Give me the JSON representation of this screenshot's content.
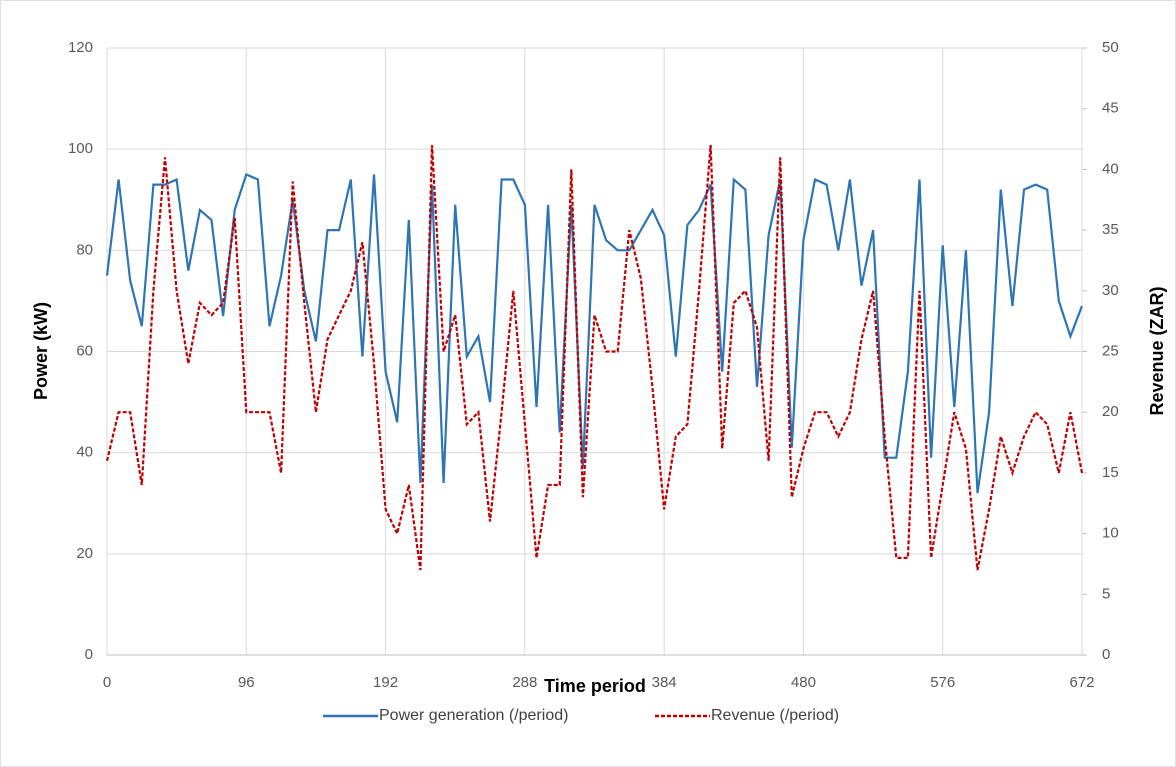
{
  "chart_data": {
    "type": "line",
    "x_label": "Time period",
    "y_label": "Power (kW)",
    "y2_label": "Revenue (ZAR)",
    "x": [
      0,
      8,
      16,
      24,
      32,
      40,
      48,
      56,
      64,
      72,
      80,
      88,
      96,
      104,
      112,
      120,
      128,
      136,
      144,
      152,
      160,
      168,
      176,
      184,
      192,
      200,
      208,
      216,
      224,
      232,
      240,
      248,
      256,
      264,
      272,
      280,
      288,
      296,
      304,
      312,
      320,
      328,
      336,
      344,
      352,
      360,
      368,
      376,
      384,
      392,
      400,
      408,
      416,
      424,
      432,
      440,
      448,
      456,
      464,
      472,
      480,
      488,
      496,
      504,
      512,
      520,
      528,
      536,
      544,
      552,
      560,
      568,
      576,
      584,
      592,
      600,
      608,
      616,
      624,
      632,
      640,
      648,
      656,
      664,
      672
    ],
    "series": [
      {
        "name": "Power generation (/period)",
        "color": "#2e75b6",
        "dash": false,
        "values": [
          75,
          94,
          74,
          65,
          93,
          93,
          94,
          76,
          88,
          86,
          67,
          88,
          95,
          94,
          65,
          75,
          90,
          72,
          62,
          84,
          84,
          94,
          59,
          95,
          56,
          46,
          86,
          34,
          93,
          34,
          89,
          59,
          63,
          50,
          94,
          94,
          89,
          49,
          89,
          44,
          89,
          37,
          89,
          82,
          80,
          80,
          84,
          88,
          83,
          59,
          85,
          88,
          93,
          56,
          94,
          92,
          53,
          83,
          94,
          41,
          82,
          94,
          93,
          80,
          94,
          73,
          84,
          39,
          39,
          56,
          94,
          39,
          81,
          49,
          80,
          32,
          48,
          92,
          69,
          92,
          93,
          92,
          70,
          63,
          69
        ]
      },
      {
        "name": "Revenue (/period)",
        "color": "#c00000",
        "dash": true,
        "axis": "y2",
        "values": [
          16,
          20,
          20,
          14,
          30,
          41,
          30,
          24,
          29,
          28,
          29,
          36,
          20,
          20,
          20,
          15,
          39,
          29,
          20,
          26,
          28,
          30,
          34,
          24,
          12,
          10,
          14,
          7,
          42,
          25,
          28,
          19,
          20,
          11,
          20,
          30,
          19,
          8,
          14,
          14,
          40,
          13,
          28,
          25,
          25,
          35,
          31,
          22,
          12,
          18,
          19,
          30,
          42,
          17,
          29,
          30,
          27,
          16,
          41,
          13,
          17,
          20,
          20,
          18,
          20,
          26,
          30,
          18,
          8,
          8,
          30,
          8,
          14,
          20,
          17,
          7,
          12,
          18,
          15,
          18,
          20,
          19,
          15,
          20,
          15
        ]
      }
    ],
    "xlim": [
      0,
      672
    ],
    "xticks": [
      0,
      96,
      192,
      288,
      384,
      480,
      576,
      672
    ],
    "ylim": [
      0,
      120
    ],
    "yticks": [
      0,
      20,
      40,
      60,
      80,
      100,
      120
    ],
    "y2lim": [
      0,
      50
    ],
    "y2ticks": [
      0,
      5,
      10,
      15,
      20,
      25,
      30,
      35,
      40,
      45,
      50
    ],
    "grid": true,
    "legend": "bottom"
  }
}
